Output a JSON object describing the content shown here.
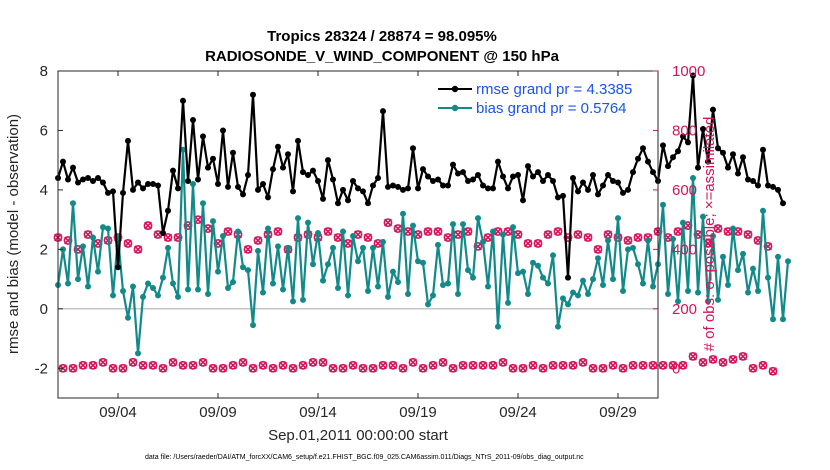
{
  "colors": {
    "rmse": "#000000",
    "bias": "#138a8a",
    "obs": "#d4145a",
    "legend_text": "#1a55e8",
    "zero_line": "#b0b0b0"
  },
  "footer": "data file: /Users/raeder/DAI/ATM_forcXX/CAM6_setup/f.e21.FHIST_BGC.f09_025.CAM6assim.011/Diags_NTrS_2011-09/obs_diag_output.nc",
  "chart_data": {
    "type": "line",
    "title": "Tropics 28324 / 28874 = 98.095%",
    "subtitle": "RADIOSONDE_V_WIND_COMPONENT @ 150 hPa",
    "xlabel": "Sep.01,2011 00:00:00 start",
    "ylabel": "rmse and bias (model - observation)",
    "ylabel_right": "# of obs: o=possible; ×=assimilated",
    "x_ticks": [
      {
        "day": 4,
        "label": "09/04"
      },
      {
        "day": 9,
        "label": "09/09"
      },
      {
        "day": 14,
        "label": "09/14"
      },
      {
        "day": 19,
        "label": "09/19"
      },
      {
        "day": 24,
        "label": "09/24"
      },
      {
        "day": 29,
        "label": "09/29"
      }
    ],
    "xlim": [
      1,
      31
    ],
    "ylim": [
      -3,
      8
    ],
    "ylim_right": [
      -100,
      1000
    ],
    "y_ticks": [
      "-2",
      "0",
      "2",
      "4",
      "6",
      "8"
    ],
    "y_ticks_right": [
      "0",
      "200",
      "400",
      "600",
      "800",
      "1000"
    ],
    "legend": [
      {
        "label": "rmse grand pr = 4.3385"
      },
      {
        "label": "bias grand pr = 0.5764"
      }
    ],
    "x_start": 1.0,
    "x_step": 0.25,
    "series": [
      {
        "name": "rmse",
        "axis": "left",
        "values": [
          4.4,
          4.95,
          4.35,
          4.75,
          4.25,
          4.35,
          4.4,
          4.3,
          4.4,
          4.25,
          3.9,
          3.95,
          1.4,
          3.9,
          5.65,
          4.0,
          4.25,
          4.05,
          4.2,
          4.2,
          4.15,
          2.55,
          3.3,
          4.65,
          4.05,
          7.0,
          4.3,
          6.35,
          4.35,
          5.8,
          4.75,
          5.05,
          4.2,
          6.0,
          4.1,
          5.25,
          4.1,
          3.85,
          4.5,
          7.2,
          4.0,
          4.2,
          3.75,
          4.7,
          5.45,
          4.75,
          5.2,
          3.95,
          5.65,
          4.6,
          4.5,
          4.65,
          4.3,
          3.7,
          5.0,
          4.35,
          3.55,
          4.0,
          3.65,
          4.3,
          4.05,
          3.95,
          3.55,
          4.15,
          4.4,
          6.65,
          4.1,
          4.15,
          4.1,
          4.0,
          4.05,
          5.4,
          4.05,
          4.7,
          4.45,
          4.3,
          4.35,
          4.15,
          4.15,
          4.85,
          4.55,
          4.6,
          4.3,
          4.35,
          4.5,
          4.15,
          4.05,
          4.05,
          4.95,
          4.45,
          4.05,
          4.45,
          4.5,
          3.65,
          4.8,
          4.45,
          4.6,
          4.3,
          4.5,
          4.3,
          3.75,
          3.8,
          1.05,
          4.4,
          3.95,
          4.25,
          4.0,
          4.5,
          3.85,
          4.15,
          4.5,
          4.3,
          4.25,
          3.9,
          4.0,
          4.6,
          5.05,
          5.4,
          4.95,
          4.6,
          4.3,
          5.5,
          4.8,
          5.1,
          5.3,
          5.8,
          5.6,
          7.85,
          4.75,
          6.05,
          4.95,
          6.7,
          5.4,
          5.25,
          4.75,
          5.2,
          4.55,
          5.1,
          4.35,
          4.3,
          4.15,
          5.35,
          4.15,
          4.1,
          4.0,
          3.55
        ]
      },
      {
        "name": "bias",
        "axis": "left",
        "values": [
          0.8,
          2.0,
          0.85,
          3.55,
          1.0,
          2.1,
          0.75,
          2.4,
          1.25,
          2.75,
          2.7,
          0.45,
          2.4,
          0.6,
          -0.3,
          0.75,
          -1.5,
          0.4,
          0.85,
          0.7,
          0.45,
          1.05,
          2.05,
          0.85,
          0.4,
          5.35,
          0.65,
          4.2,
          0.65,
          3.55,
          0.5,
          2.95,
          1.25,
          2.45,
          0.7,
          0.9,
          2.6,
          1.4,
          1.3,
          -0.55,
          1.95,
          0.55,
          2.7,
          0.85,
          2.1,
          0.65,
          2.05,
          0.25,
          3.05,
          0.3,
          2.9,
          1.5,
          2.55,
          0.95,
          1.5,
          2.05,
          0.7,
          2.6,
          0.45,
          2.45,
          1.6,
          2.05,
          0.6,
          2.05,
          0.75,
          2.25,
          0.4,
          1.25,
          0.9,
          3.2,
          0.5,
          2.8,
          1.6,
          1.55,
          0.15,
          0.45,
          2.15,
          0.8,
          0.85,
          2.85,
          0.5,
          2.85,
          1.3,
          1.05,
          3.05,
          2.25,
          0.75,
          2.6,
          -0.6,
          2.5,
          0.2,
          2.75,
          1.2,
          1.25,
          0.5,
          1.55,
          1.45,
          1.05,
          0.85,
          1.8,
          -0.6,
          0.35,
          0.15,
          0.55,
          0.45,
          0.95,
          0.5,
          1.0,
          1.7,
          0.8,
          2.3,
          1.0,
          3.05,
          0.6,
          2.0,
          2.05,
          1.5,
          0.85,
          2.3,
          0.75,
          1.5,
          3.5,
          0.5,
          2.35,
          0.25,
          2.9,
          0.6,
          4.4,
          0.55,
          3.1,
          0.25,
          2.45,
          0.3,
          1.75,
          0.8,
          2.7,
          1.3,
          1.85,
          0.55,
          1.35,
          0.6,
          3.3,
          1.05,
          -0.35,
          1.75,
          -0.35,
          1.6
        ]
      },
      {
        "name": "obs",
        "axis": "right",
        "values": [
          440,
          0,
          430,
          0,
          400,
          10,
          450,
          10,
          420,
          20,
          430,
          0,
          440,
          0,
          420,
          20,
          400,
          10,
          480,
          10,
          450,
          0,
          440,
          20,
          440,
          10,
          480,
          10,
          500,
          20,
          470,
          0,
          420,
          0,
          460,
          10,
          450,
          20,
          400,
          0,
          430,
          10,
          450,
          0,
          460,
          10,
          400,
          0,
          440,
          10,
          450,
          20,
          440,
          20,
          460,
          0,
          440,
          0,
          420,
          10,
          450,
          0,
          440,
          0,
          420,
          10,
          490,
          10,
          470,
          0,
          460,
          20,
          450,
          0,
          460,
          10,
          460,
          20,
          440,
          0,
          450,
          10,
          460,
          10,
          410,
          10,
          440,
          10,
          460,
          20,
          460,
          0,
          450,
          0,
          420,
          10,
          420,
          0,
          450,
          10,
          460,
          10,
          440,
          10,
          450,
          20,
          440,
          0,
          400,
          0,
          450,
          10,
          440,
          0,
          430,
          10,
          440,
          10,
          440,
          10,
          460,
          10,
          440,
          10,
          460,
          10,
          480,
          40,
          450,
          20,
          420,
          30,
          470,
          20,
          460,
          30,
          460,
          40,
          450,
          0,
          430,
          10,
          410,
          -10
        ]
      }
    ]
  }
}
